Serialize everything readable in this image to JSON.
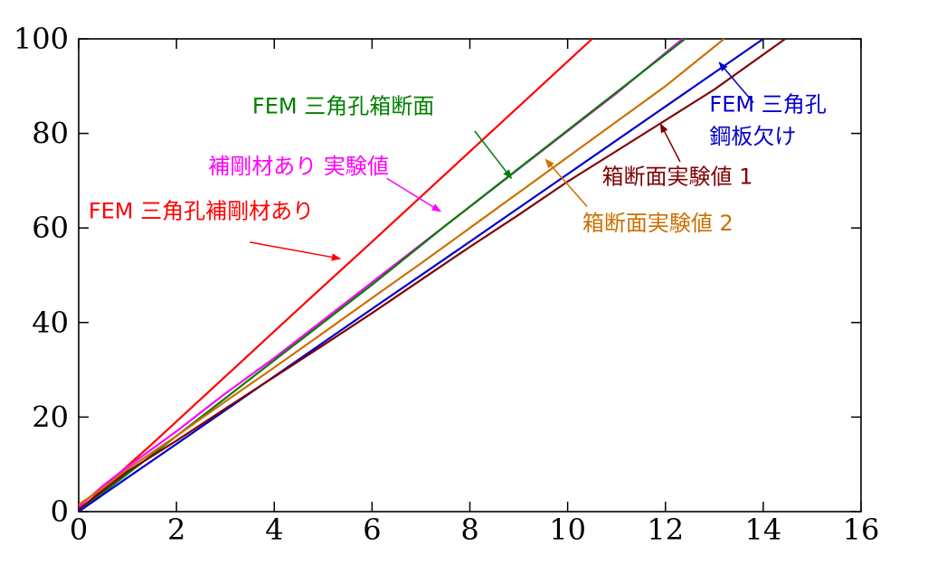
{
  "chart_data": {
    "type": "line",
    "title": "",
    "xlabel": "",
    "ylabel": "",
    "xlim": [
      0,
      16
    ],
    "ylim": [
      0,
      100
    ],
    "x_ticks": [
      0,
      2,
      4,
      6,
      8,
      10,
      12,
      14,
      16
    ],
    "y_ticks": [
      0,
      20,
      40,
      60,
      80,
      100
    ],
    "grid": false,
    "series": [
      {
        "name": "FEM 三角孔補剛材あり",
        "color": "#ff0000",
        "x": [
          0,
          0.6,
          1.5,
          3,
          4.5,
          6,
          7.5,
          9,
          10.5
        ],
        "y": [
          0,
          6,
          14.3,
          28.6,
          42.9,
          57.1,
          71.4,
          85.7,
          100
        ]
      },
      {
        "name": "補剛材あり 実験値",
        "color": "#ff00ff",
        "x": [
          0,
          0.5,
          1,
          2,
          3,
          4,
          5,
          6,
          7,
          8,
          9,
          10,
          11,
          12.35
        ],
        "y": [
          1,
          5.5,
          9.5,
          17,
          25,
          32.5,
          40.5,
          48.5,
          56.5,
          64.5,
          72.5,
          80.5,
          88.5,
          100
        ]
      },
      {
        "name": "FEM 三角孔箱断面",
        "color": "#008000",
        "x": [
          0,
          0.6,
          1.5,
          3,
          4.5,
          6,
          7.5,
          9,
          10.5,
          12.4
        ],
        "y": [
          0,
          4.8,
          12,
          24,
          36,
          48,
          60.5,
          72.6,
          84.7,
          100
        ]
      },
      {
        "name": "箱断面実験値 2",
        "color": "#cc7000",
        "x": [
          0,
          0.5,
          1,
          2,
          3,
          4,
          5,
          6,
          7,
          8,
          9,
          10,
          11,
          12,
          13.2
        ],
        "y": [
          1.5,
          5,
          9,
          16,
          23.3,
          30.5,
          37.8,
          45.2,
          52.5,
          60,
          67.5,
          75,
          82.5,
          90,
          100
        ]
      },
      {
        "name": "FEM 三角孔 鋼板欠け",
        "color": "#0000cc",
        "x": [
          0,
          1,
          2,
          4,
          6,
          8,
          10,
          12,
          14
        ],
        "y": [
          0,
          7.2,
          14.3,
          28.6,
          42.9,
          57.1,
          71.4,
          85.7,
          100
        ]
      },
      {
        "name": "箱断面実験値 1",
        "color": "#800000",
        "x": [
          0,
          0.5,
          1,
          2,
          3,
          4,
          5,
          6,
          7,
          8,
          9,
          10,
          11,
          12,
          13,
          14.45
        ],
        "y": [
          0.5,
          4.5,
          8.5,
          15,
          21.8,
          28.5,
          35.2,
          42,
          49,
          56,
          62.8,
          69.8,
          76.3,
          82.8,
          89.3,
          100
        ]
      }
    ],
    "annotations": [
      {
        "text": "FEM 三角孔補剛材あり",
        "color": "#ff0000",
        "text_x": 0.2,
        "text_y": 62,
        "arrow_from": [
          3.5,
          57
        ],
        "arrow_to": [
          5.35,
          53.5
        ]
      },
      {
        "text": "補剛材あり 実験値",
        "color": "#ff00ff",
        "text_x": 2.65,
        "text_y": 71.5,
        "arrow_from": [
          6.3,
          70.5
        ],
        "arrow_to": [
          7.4,
          63.5
        ]
      },
      {
        "text": "FEM 三角孔箱断面",
        "color": "#008000",
        "text_x": 3.55,
        "text_y": 84.2,
        "arrow_from": [
          8.1,
          80.5
        ],
        "arrow_to": [
          8.85,
          70.5
        ]
      },
      {
        "text": "箱断面実験値 2",
        "color": "#cc7000",
        "text_x": 10.3,
        "text_y": 59.5,
        "arrow_from": [
          10.4,
          64.5
        ],
        "arrow_to": [
          9.55,
          74.5
        ]
      },
      {
        "text": "箱断面実験値 1",
        "color": "#800000",
        "text_x": 10.7,
        "text_y": 69.3,
        "arrow_from": [
          12.3,
          74
        ],
        "arrow_to": [
          11.9,
          82
        ]
      },
      {
        "text": "FEM 三角孔",
        "color": "#0000cc",
        "text_x": 12.9,
        "text_y": 84.6,
        "arrow_from": [
          13.8,
          86.5
        ],
        "arrow_to": [
          13.1,
          95
        ]
      },
      {
        "text": "鋼板欠け",
        "color": "#0000cc",
        "text_x": 12.9,
        "text_y": 77.8
      }
    ]
  }
}
